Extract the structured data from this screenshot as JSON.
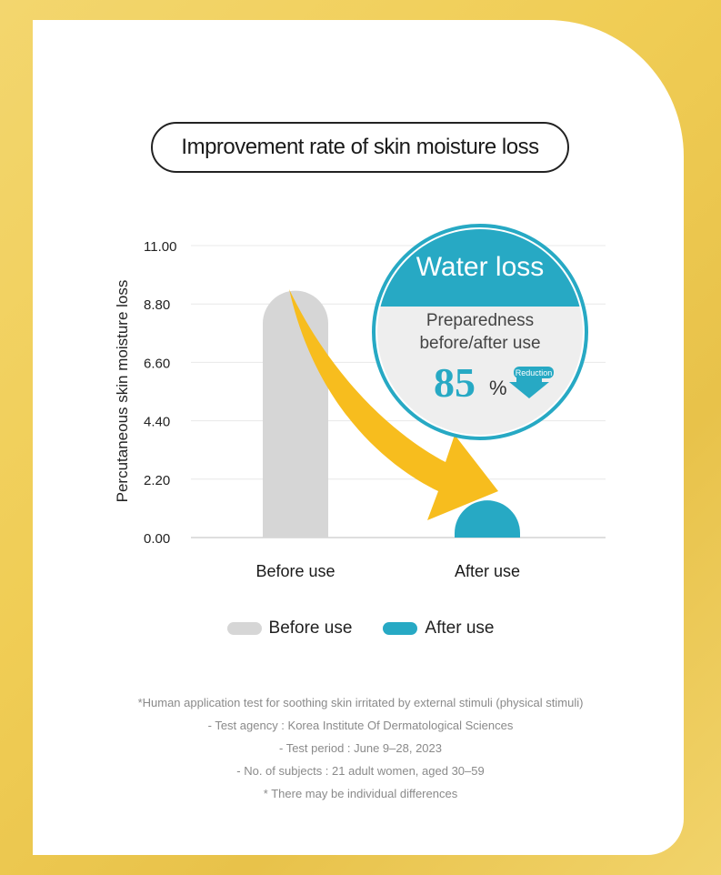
{
  "title": "Improvement rate of skin moisture loss",
  "colors": {
    "before": "#d6d6d6",
    "after": "#27a9c4",
    "arrow": "#f7bd1e",
    "badge_fill": "#27a9c4",
    "badge_bg": "#eeeeee"
  },
  "chart_data": {
    "type": "bar",
    "categories": [
      "Before use",
      "After use"
    ],
    "series": [
      {
        "name": "Before use",
        "values": [
          9.3,
          null
        ]
      },
      {
        "name": "After use",
        "values": [
          null,
          1.4
        ]
      }
    ],
    "values": [
      9.3,
      1.4
    ],
    "ylabel": "Percutaneous skin moisture loss",
    "ylim": [
      0,
      11
    ],
    "yticks": [
      "11.00",
      "8.80",
      "6.60",
      "4.40",
      "2.20",
      "0.00"
    ],
    "ytick_values": [
      11,
      8.8,
      6.6,
      4.4,
      2.2,
      0
    ],
    "grid": true
  },
  "badge": {
    "title": "Water loss",
    "line1": "Preparedness",
    "line2": "before/after use",
    "value": "85",
    "unit": "%",
    "tag": "Reduction"
  },
  "legend": {
    "before_label": "Before use",
    "after_label": "After use"
  },
  "footnotes": [
    "*Human application test for soothing skin irritated by external stimuli (physical stimuli)",
    "- Test agency : Korea Institute Of Dermatological Sciences",
    "- Test period : June 9–28, 2023",
    "- No. of subjects : 21 adult women, aged 30–59",
    "* There may be individual differences"
  ]
}
